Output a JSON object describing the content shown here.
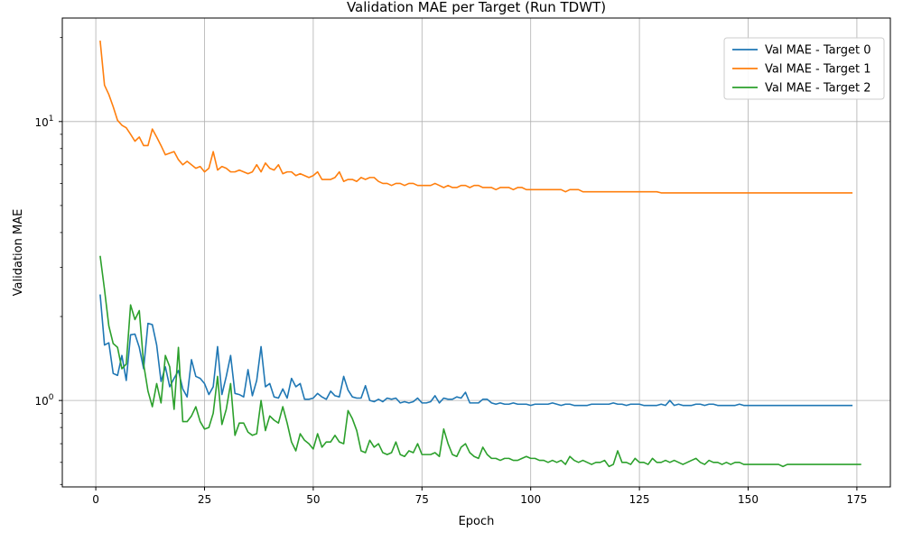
{
  "chart_data": {
    "type": "line",
    "title": "Validation MAE per Target (Run TDWT)",
    "xlabel": "Epoch",
    "ylabel": "Validation MAE",
    "yscale": "log",
    "xlim": [
      -7.7,
      182.7
    ],
    "ylim": [
      0.49,
      23.5
    ],
    "x_ticks": [
      0,
      25,
      50,
      75,
      100,
      125,
      150,
      175
    ],
    "x_tick_labels": [
      "0",
      "25",
      "50",
      "75",
      "100",
      "125",
      "150",
      "175"
    ],
    "y_major_ticks": [
      1,
      10
    ],
    "y_major_tick_labels": [
      "10^0",
      "10^1"
    ],
    "grid": true,
    "legend_position": "top-right",
    "series": [
      {
        "name": "Val MAE - Target 0",
        "color": "#1f77b4",
        "values": [
          2.4,
          1.58,
          1.61,
          1.25,
          1.23,
          1.45,
          1.18,
          1.72,
          1.73,
          1.55,
          1.3,
          1.89,
          1.87,
          1.58,
          1.17,
          1.32,
          1.12,
          1.2,
          1.28,
          1.1,
          1.03,
          1.4,
          1.22,
          1.2,
          1.15,
          1.05,
          1.12,
          1.56,
          1.05,
          1.22,
          1.45,
          1.06,
          1.05,
          1.03,
          1.29,
          1.04,
          1.18,
          1.56,
          1.12,
          1.15,
          1.03,
          1.02,
          1.1,
          1.02,
          1.2,
          1.12,
          1.15,
          1.01,
          1.01,
          1.02,
          1.06,
          1.03,
          1.01,
          1.08,
          1.04,
          1.03,
          1.22,
          1.09,
          1.03,
          1.02,
          1.02,
          1.13,
          1.0,
          0.99,
          1.01,
          0.99,
          1.02,
          1.01,
          1.02,
          0.98,
          0.99,
          0.98,
          0.99,
          1.02,
          0.98,
          0.98,
          0.99,
          1.04,
          0.98,
          1.02,
          1.01,
          1.01,
          1.03,
          1.02,
          1.07,
          0.98,
          0.98,
          0.98,
          1.01,
          1.01,
          0.98,
          0.97,
          0.98,
          0.97,
          0.97,
          0.98,
          0.97,
          0.97,
          0.97,
          0.96,
          0.97,
          0.97,
          0.97,
          0.97,
          0.98,
          0.97,
          0.96,
          0.97,
          0.97,
          0.96,
          0.96,
          0.96,
          0.96,
          0.97,
          0.97,
          0.97,
          0.97,
          0.97,
          0.98,
          0.97,
          0.97,
          0.96,
          0.97,
          0.97,
          0.97,
          0.96,
          0.96,
          0.96,
          0.96,
          0.97,
          0.96,
          1.0,
          0.96,
          0.97,
          0.96,
          0.96,
          0.96,
          0.97,
          0.97,
          0.96,
          0.97,
          0.97,
          0.96,
          0.96,
          0.96,
          0.96,
          0.96,
          0.97,
          0.96,
          0.96,
          0.96,
          0.96,
          0.96,
          0.96,
          0.96,
          0.96,
          0.96,
          0.96,
          0.96,
          0.96,
          0.96,
          0.96,
          0.96,
          0.96,
          0.96,
          0.96,
          0.96,
          0.96,
          0.96,
          0.96,
          0.96,
          0.96,
          0.96,
          0.96
        ]
      },
      {
        "name": "Val MAE - Target 1",
        "color": "#ff7f0e",
        "values": [
          19.5,
          13.5,
          12.5,
          11.3,
          10.1,
          9.7,
          9.5,
          9.0,
          8.5,
          8.8,
          8.2,
          8.2,
          9.4,
          8.8,
          8.2,
          7.6,
          7.7,
          7.8,
          7.3,
          7.0,
          7.2,
          7.0,
          6.8,
          6.9,
          6.6,
          6.8,
          7.8,
          6.7,
          6.9,
          6.8,
          6.6,
          6.6,
          6.7,
          6.6,
          6.5,
          6.6,
          7.0,
          6.6,
          7.1,
          6.8,
          6.7,
          7.0,
          6.5,
          6.6,
          6.6,
          6.4,
          6.5,
          6.4,
          6.3,
          6.4,
          6.6,
          6.2,
          6.2,
          6.2,
          6.3,
          6.6,
          6.1,
          6.2,
          6.2,
          6.1,
          6.3,
          6.2,
          6.3,
          6.3,
          6.1,
          6.0,
          6.0,
          5.9,
          6.0,
          6.0,
          5.9,
          6.0,
          6.0,
          5.9,
          5.9,
          5.9,
          5.9,
          6.0,
          5.9,
          5.8,
          5.9,
          5.8,
          5.8,
          5.9,
          5.9,
          5.8,
          5.9,
          5.9,
          5.8,
          5.8,
          5.8,
          5.7,
          5.8,
          5.8,
          5.8,
          5.7,
          5.8,
          5.8,
          5.7,
          5.7,
          5.7,
          5.7,
          5.7,
          5.7,
          5.7,
          5.7,
          5.7,
          5.6,
          5.7,
          5.7,
          5.7,
          5.6,
          5.6,
          5.6,
          5.6,
          5.6,
          5.6,
          5.6,
          5.6,
          5.6,
          5.6,
          5.6,
          5.6,
          5.6,
          5.6,
          5.6,
          5.6,
          5.6,
          5.6,
          5.55,
          5.55,
          5.55,
          5.55,
          5.55,
          5.55,
          5.55,
          5.55,
          5.55,
          5.55,
          5.55,
          5.55,
          5.55,
          5.55,
          5.55,
          5.55,
          5.55,
          5.55,
          5.55,
          5.55,
          5.55,
          5.55,
          5.55,
          5.55,
          5.55,
          5.55,
          5.55,
          5.55,
          5.55,
          5.55,
          5.55,
          5.55,
          5.55,
          5.55,
          5.55,
          5.55,
          5.55,
          5.55,
          5.55,
          5.55,
          5.55,
          5.55,
          5.55,
          5.55,
          5.55
        ]
      },
      {
        "name": "Val MAE - Target 2",
        "color": "#2ca02c",
        "values": [
          3.3,
          2.5,
          1.85,
          1.6,
          1.55,
          1.3,
          1.35,
          2.2,
          1.95,
          2.1,
          1.35,
          1.08,
          0.95,
          1.15,
          0.98,
          1.45,
          1.32,
          0.93,
          1.55,
          0.84,
          0.84,
          0.88,
          0.95,
          0.84,
          0.79,
          0.8,
          0.9,
          1.22,
          0.82,
          0.93,
          1.15,
          0.75,
          0.83,
          0.83,
          0.77,
          0.75,
          0.76,
          1.0,
          0.78,
          0.88,
          0.85,
          0.83,
          0.95,
          0.83,
          0.71,
          0.66,
          0.76,
          0.72,
          0.7,
          0.67,
          0.76,
          0.68,
          0.71,
          0.71,
          0.75,
          0.71,
          0.7,
          0.92,
          0.86,
          0.78,
          0.66,
          0.65,
          0.72,
          0.68,
          0.7,
          0.65,
          0.64,
          0.65,
          0.71,
          0.64,
          0.63,
          0.66,
          0.65,
          0.7,
          0.64,
          0.64,
          0.64,
          0.65,
          0.63,
          0.79,
          0.7,
          0.64,
          0.63,
          0.68,
          0.7,
          0.65,
          0.63,
          0.62,
          0.68,
          0.64,
          0.62,
          0.62,
          0.61,
          0.62,
          0.62,
          0.61,
          0.61,
          0.62,
          0.63,
          0.62,
          0.62,
          0.61,
          0.61,
          0.6,
          0.61,
          0.6,
          0.61,
          0.59,
          0.63,
          0.61,
          0.6,
          0.61,
          0.6,
          0.59,
          0.6,
          0.6,
          0.61,
          0.58,
          0.59,
          0.66,
          0.6,
          0.6,
          0.59,
          0.62,
          0.6,
          0.6,
          0.59,
          0.62,
          0.6,
          0.6,
          0.61,
          0.6,
          0.61,
          0.6,
          0.59,
          0.6,
          0.61,
          0.62,
          0.6,
          0.59,
          0.61,
          0.6,
          0.6,
          0.59,
          0.6,
          0.59,
          0.6,
          0.6,
          0.59,
          0.59,
          0.59,
          0.59,
          0.59,
          0.59,
          0.59,
          0.59,
          0.59,
          0.58,
          0.59,
          0.59,
          0.59,
          0.59,
          0.59,
          0.59,
          0.59,
          0.59,
          0.59,
          0.59,
          0.59,
          0.59,
          0.59,
          0.59,
          0.59,
          0.59,
          0.59,
          0.59
        ]
      }
    ]
  }
}
